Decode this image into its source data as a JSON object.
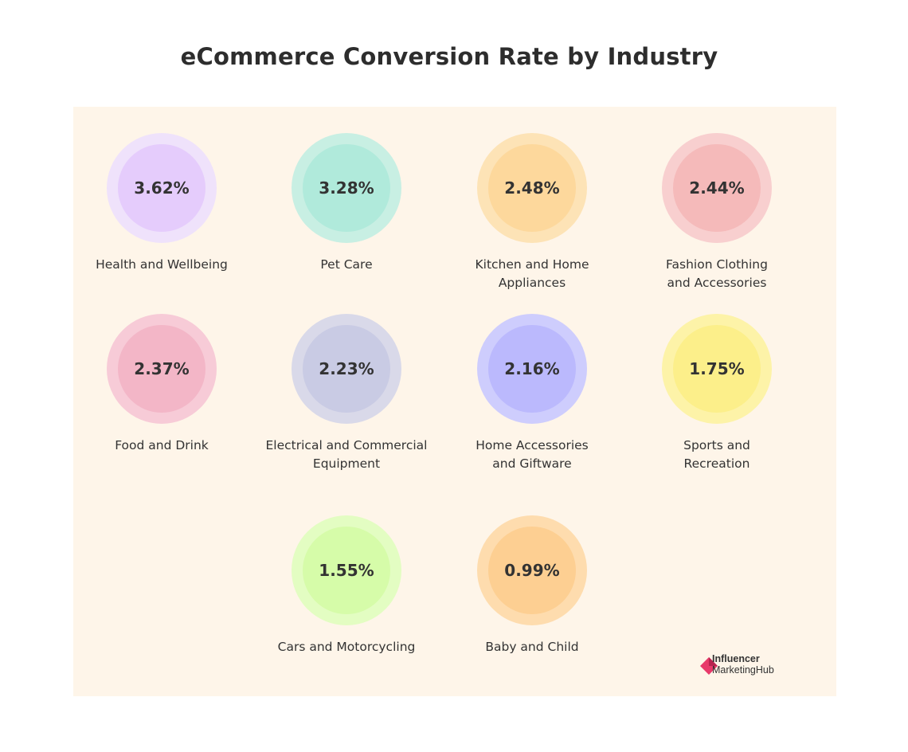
{
  "title": "eCommerce Conversion Rate by Industry",
  "chart_data": {
    "type": "bubble",
    "title": "eCommerce Conversion Rate by Industry",
    "categories": [
      "Health and Wellbeing",
      "Pet Care",
      "Kitchen and Home Appliances",
      "Fashion Clothing and Accessories",
      "Food and Drink",
      "Electrical and Commercial Equipment",
      "Home Accessories and Giftware",
      "Sports and Recreation",
      "Cars and Motorcycling",
      "Baby and Child"
    ],
    "items": [
      {
        "label": "Health and Wellbeing",
        "value": "3.62%",
        "outer_color": "#efe2fb",
        "inner_color": "#e5ccfc"
      },
      {
        "label": "Pet Care",
        "value": "3.28%",
        "outer_color": "#c8efe3",
        "inner_color": "#b0eadb"
      },
      {
        "label": "Kitchen and Home\nAppliances",
        "value": "2.48%",
        "outer_color": "#fde3b6",
        "inner_color": "#fdd89c"
      },
      {
        "label": "Fashion Clothing\nand Accessories",
        "value": "2.44%",
        "outer_color": "#f8cfcf",
        "inner_color": "#f5baba"
      },
      {
        "label": "Food and Drink",
        "value": "2.37%",
        "outer_color": "#f7cbd7",
        "inner_color": "#f3b6c7"
      },
      {
        "label": "Electrical and Commercial\nEquipment",
        "value": "2.23%",
        "outer_color": "#d9d9e9",
        "inner_color": "#c9cbe4"
      },
      {
        "label": "Home Accessories\nand Giftware",
        "value": "2.16%",
        "outer_color": "#cecdfd",
        "inner_color": "#bbb9fd"
      },
      {
        "label": "Sports and\nRecreation",
        "value": "1.75%",
        "outer_color": "#fdf3a8",
        "inner_color": "#fcef8a"
      },
      {
        "label": "Cars and Motorcycling",
        "value": "1.55%",
        "outer_color": "#e3fdc2",
        "inner_color": "#d6fca9"
      },
      {
        "label": "Baby and Child",
        "value": "0.99%",
        "outer_color": "#fedcae",
        "inner_color": "#fdcf92"
      }
    ],
    "values": [
      3.62,
      3.28,
      2.48,
      2.44,
      2.37,
      2.23,
      2.16,
      1.75,
      1.55,
      0.99
    ],
    "unit": "%"
  },
  "logo": {
    "line1": "Influencer",
    "line2": "MarketingHub",
    "color": "#e8396a"
  },
  "colors": {
    "panel_background": "#fef5e9",
    "text": "#333333"
  }
}
